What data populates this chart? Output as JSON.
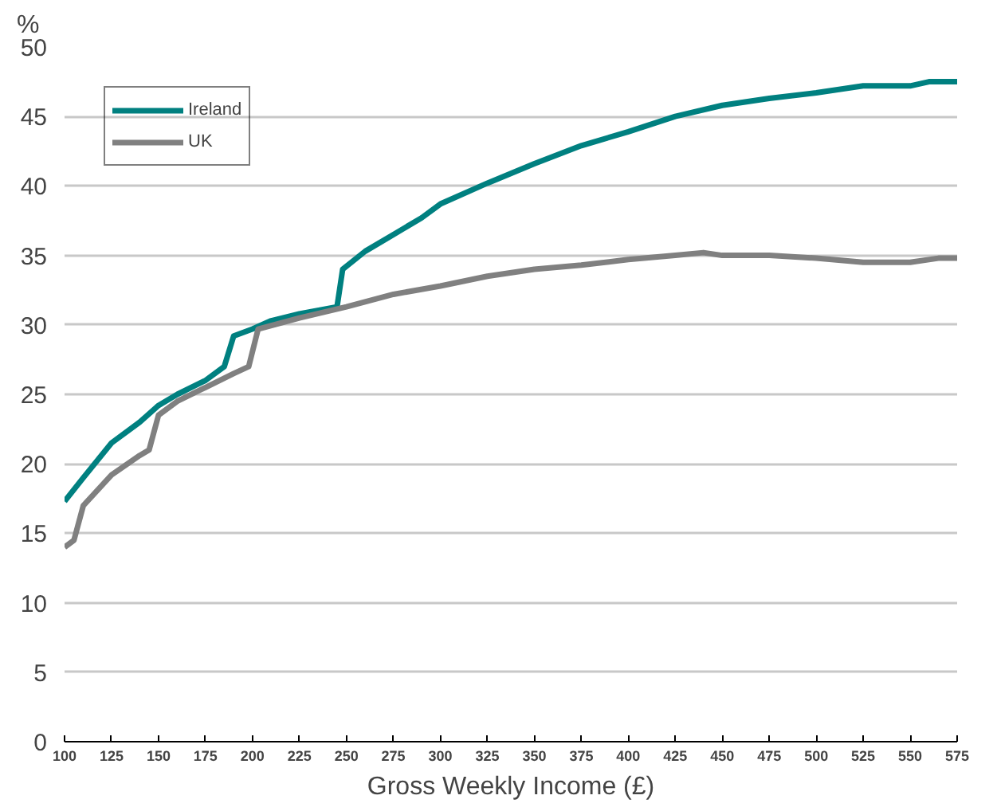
{
  "chart_data": {
    "type": "line",
    "ylabel": "%",
    "xlabel": "Gross Weekly Income (£)",
    "xlim": [
      100,
      575
    ],
    "xticks": [
      100,
      125,
      150,
      175,
      200,
      225,
      250,
      275,
      300,
      325,
      350,
      375,
      400,
      425,
      450,
      475,
      500,
      525,
      550,
      575
    ],
    "ylim": [
      0,
      50
    ],
    "yticks": [
      0,
      5,
      10,
      15,
      20,
      25,
      30,
      35,
      40,
      45,
      50
    ],
    "grid": "y",
    "legend": "top left",
    "series": [
      {
        "name": "Ireland",
        "color": "#008080",
        "x": [
          100,
          110,
          125,
          140,
          150,
          160,
          175,
          185,
          190,
          200,
          210,
          225,
          245,
          248,
          260,
          275,
          290,
          300,
          325,
          350,
          375,
          400,
          425,
          450,
          475,
          500,
          525,
          550,
          560,
          575
        ],
        "values": [
          17.3,
          19,
          21.5,
          23,
          24.2,
          25,
          26,
          27,
          29.2,
          29.7,
          30.3,
          30.8,
          31.3,
          34,
          35.3,
          36.5,
          37.7,
          38.7,
          40.2,
          41.6,
          42.9,
          43.9,
          45,
          45.8,
          46.3,
          46.7,
          47.2,
          47.2,
          47.5,
          47.5
        ]
      },
      {
        "name": "UK",
        "color": "#808080",
        "x": [
          100,
          105,
          110,
          125,
          140,
          145,
          150,
          160,
          175,
          190,
          198,
          203,
          225,
          250,
          275,
          300,
          325,
          350,
          375,
          400,
          425,
          440,
          450,
          475,
          500,
          525,
          550,
          565,
          575
        ],
        "values": [
          14,
          14.5,
          17,
          19.2,
          20.6,
          21,
          23.5,
          24.5,
          25.5,
          26.5,
          27,
          29.7,
          30.5,
          31.3,
          32.2,
          32.8,
          33.5,
          34,
          34.3,
          34.7,
          35,
          35.2,
          35,
          35,
          34.8,
          34.5,
          34.5,
          34.8,
          34.8
        ]
      }
    ]
  }
}
